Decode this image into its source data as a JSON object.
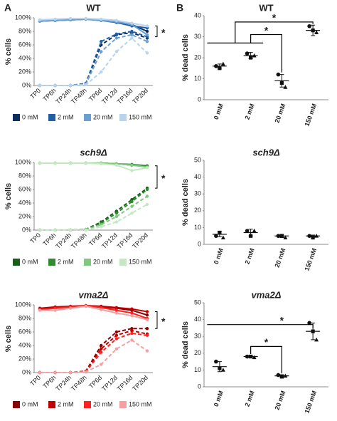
{
  "panel_labels": [
    "A",
    "B"
  ],
  "chart_data": [
    {
      "type": "line",
      "title": "WT",
      "ylabel": "% cells",
      "categories": [
        "TP0",
        "TP6h",
        "TP24h",
        "TP48h",
        "TP6d",
        "TP12d",
        "TP16d",
        "TP20d"
      ],
      "ylim": [
        0,
        100
      ],
      "yticks": [
        {
          "value": 0,
          "label": "0%"
        },
        {
          "value": 20,
          "label": "20%"
        },
        {
          "value": 40,
          "label": "40%"
        },
        {
          "value": 60,
          "label": "60%"
        },
        {
          "value": 80,
          "label": "80%"
        },
        {
          "value": 100,
          "label": "100%"
        }
      ],
      "series": [
        {
          "name": "0 mM",
          "color": "#0b2e5e",
          "values": [
            95,
            96,
            97,
            98,
            97,
            95,
            90,
            80
          ],
          "values_2": [
            0,
            0,
            0,
            3,
            60,
            75,
            78,
            70
          ]
        },
        {
          "name": "2 mM",
          "color": "#1f5fa8",
          "values": [
            95,
            96,
            97,
            98,
            96,
            93,
            88,
            85
          ],
          "values_2": [
            0,
            0,
            0,
            3,
            65,
            76,
            80,
            72
          ]
        },
        {
          "name": "20 mM",
          "color": "#6a9fd4",
          "values": [
            95,
            96,
            97,
            98,
            96,
            94,
            90,
            75
          ],
          "values_2": [
            0,
            0,
            0,
            2,
            50,
            70,
            75,
            65
          ]
        },
        {
          "name": "150 mM",
          "color": "#b7d3ee",
          "values": [
            97,
            98,
            99,
            99,
            98,
            96,
            92,
            88
          ],
          "values_2": [
            0,
            0,
            0,
            1,
            20,
            50,
            70,
            48
          ]
        }
      ],
      "annotations": [
        "*"
      ]
    },
    {
      "type": "dotplot",
      "title": "WT",
      "ylabel": "% dead cells",
      "categories": [
        "0 mM",
        "2 mM",
        "20 mM",
        "150 mM"
      ],
      "ylim": [
        0,
        40
      ],
      "yticks": [
        0,
        10,
        20,
        30,
        40
      ],
      "points": [
        [
          16,
          15,
          17
        ],
        [
          22,
          20,
          21
        ],
        [
          12,
          8,
          6
        ],
        [
          35,
          33,
          32
        ]
      ],
      "means": [
        16,
        21,
        9,
        33
      ],
      "errors": [
        1,
        1.5,
        3,
        2.5
      ],
      "annotations": [
        "*",
        "*"
      ]
    },
    {
      "type": "line",
      "title": "sch9Δ",
      "ylabel": "% cells",
      "categories": [
        "TP0",
        "TP6h",
        "TP24h",
        "TP48h",
        "TP6d",
        "TP12d",
        "TP16d",
        "TP20d"
      ],
      "ylim": [
        0,
        100
      ],
      "yticks": [
        {
          "value": 0,
          "label": "0%"
        },
        {
          "value": 20,
          "label": "20%"
        },
        {
          "value": 40,
          "label": "40%"
        },
        {
          "value": 60,
          "label": "60%"
        },
        {
          "value": 80,
          "label": "80%"
        },
        {
          "value": 100,
          "label": "100%"
        }
      ],
      "series": [
        {
          "name": "0 mM",
          "color": "#1a5e1a",
          "values": [
            99,
            99,
            99,
            99,
            99,
            98,
            96,
            94
          ],
          "values_2": [
            0,
            0,
            0,
            1,
            12,
            28,
            45,
            62
          ]
        },
        {
          "name": "2 mM",
          "color": "#2e8b2e",
          "values": [
            99,
            99,
            99,
            99,
            99,
            98,
            97,
            95
          ],
          "values_2": [
            0,
            0,
            0,
            1,
            10,
            25,
            42,
            60
          ]
        },
        {
          "name": "20 mM",
          "color": "#7ec97e",
          "values": [
            99,
            99,
            99,
            99,
            99,
            98,
            96,
            93
          ],
          "values_2": [
            0,
            0,
            0,
            1,
            8,
            20,
            35,
            50
          ]
        },
        {
          "name": "150 mM",
          "color": "#c4e8c0",
          "values": [
            99,
            99,
            99,
            99,
            98,
            96,
            88,
            92
          ],
          "values_2": [
            0,
            0,
            0,
            0,
            5,
            12,
            25,
            38
          ]
        }
      ],
      "annotations": [
        "*"
      ]
    },
    {
      "type": "dotplot",
      "title": "sch9Δ",
      "ylabel": "% dead cells",
      "categories": [
        "0 mM",
        "2 mM",
        "20 mM",
        "150 mM"
      ],
      "ylim": [
        0,
        50
      ],
      "yticks": [
        0,
        10,
        20,
        30,
        40,
        50
      ],
      "points": [
        [
          5,
          7,
          4
        ],
        [
          8,
          5,
          8
        ],
        [
          5,
          5,
          4
        ],
        [
          5,
          4,
          5
        ]
      ],
      "means": [
        6,
        7,
        5,
        5
      ],
      "errors": [
        1.5,
        2,
        1,
        0.5
      ],
      "annotations": []
    },
    {
      "type": "line",
      "title": "vma2Δ",
      "ylabel": "% cells",
      "categories": [
        "TP0",
        "TP6h",
        "TP24h",
        "TP48h",
        "TP6d",
        "TP12d",
        "TP16d",
        "TP20d"
      ],
      "ylim": [
        0,
        100
      ],
      "yticks": [
        {
          "value": 0,
          "label": "0%"
        },
        {
          "value": 20,
          "label": "20%"
        },
        {
          "value": 40,
          "label": "40%"
        },
        {
          "value": 60,
          "label": "60%"
        },
        {
          "value": 80,
          "label": "80%"
        },
        {
          "value": 100,
          "label": "100%"
        }
      ],
      "series": [
        {
          "name": "0 mM",
          "color": "#8b0000",
          "values": [
            93,
            96,
            97,
            98,
            97,
            95,
            92,
            85
          ],
          "values_2": [
            0,
            0,
            0,
            2,
            40,
            60,
            65,
            65
          ]
        },
        {
          "name": "2 mM",
          "color": "#c00000",
          "values": [
            95,
            97,
            98,
            99,
            98,
            96,
            94,
            90
          ],
          "values_2": [
            0,
            0,
            0,
            2,
            35,
            55,
            62,
            57
          ]
        },
        {
          "name": "20 mM",
          "color": "#ff2020",
          "values": [
            93,
            95,
            97,
            99,
            96,
            92,
            88,
            80
          ],
          "values_2": [
            0,
            0,
            0,
            1,
            30,
            50,
            58,
            55
          ]
        },
        {
          "name": "150 mM",
          "color": "#f4a0a0",
          "values": [
            92,
            92,
            95,
            98,
            93,
            88,
            84,
            78
          ],
          "values_2": [
            0,
            0,
            0,
            1,
            12,
            35,
            48,
            32
          ]
        }
      ],
      "annotations": [
        "*"
      ]
    },
    {
      "type": "dotplot",
      "title": "vma2Δ",
      "ylabel": "% dead cells",
      "categories": [
        "0 mM",
        "2 mM",
        "20 mM",
        "150 mM"
      ],
      "ylim": [
        0,
        50
      ],
      "yticks": [
        0,
        10,
        20,
        30,
        40,
        50
      ],
      "points": [
        [
          15,
          11,
          10
        ],
        [
          18,
          18,
          17.5
        ],
        [
          7,
          6,
          6.5
        ],
        [
          38,
          33,
          28
        ]
      ],
      "means": [
        12,
        18,
        6.5,
        33
      ],
      "errors": [
        3,
        0.5,
        0.7,
        5
      ],
      "annotations": [
        "*",
        "*"
      ]
    }
  ]
}
